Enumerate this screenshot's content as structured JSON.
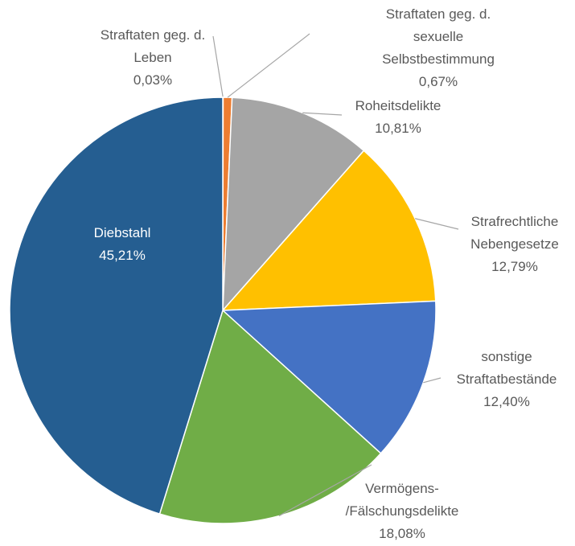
{
  "chart_data": {
    "type": "pie",
    "categories": [
      "Straftaten geg. d.\nLeben",
      "Straftaten geg. d. sexuelle\nSelbstbestimmung",
      "Roheitsdelikte",
      "Strafrechtliche\nNebengesetze",
      "sonstige\nStraftatbestände",
      "Vermögens-\n/Fälschungsdelikte",
      "Diebstahl"
    ],
    "values": [
      0.03,
      0.67,
      10.81,
      12.79,
      12.4,
      18.08,
      45.21
    ],
    "value_labels": [
      "0,03%",
      "0,67%",
      "10,81%",
      "12,79%",
      "12,40%",
      "18,08%",
      "45,21%"
    ],
    "colors": [
      "#5b9bd5",
      "#ed7d31",
      "#a5a5a5",
      "#ffc000",
      "#4472c4",
      "#70ad47",
      "#255e91"
    ]
  }
}
